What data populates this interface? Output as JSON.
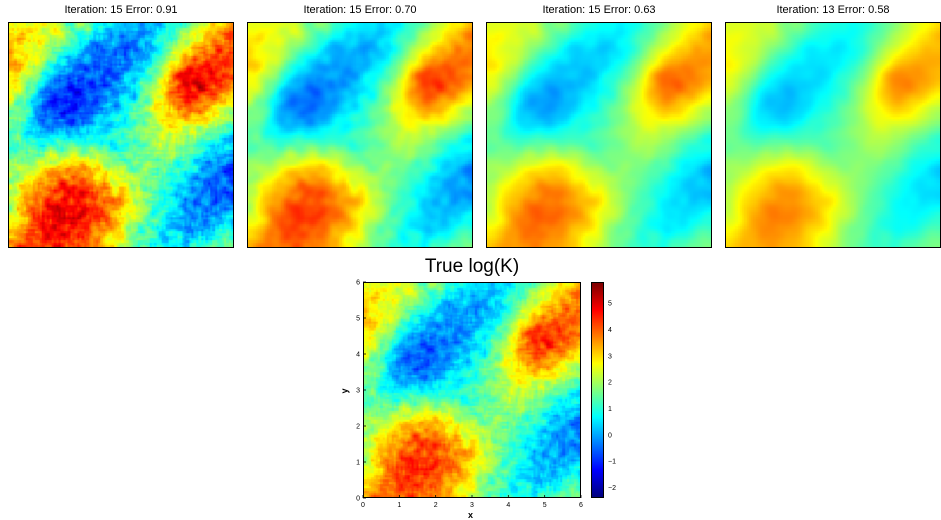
{
  "panels": [
    {
      "title": "Iteration: 15 Error: 0.91",
      "seed": 11,
      "smooth": 1,
      "amp": 1.25
    },
    {
      "title": "Iteration: 15 Error: 0.70",
      "seed": 11,
      "smooth": 3,
      "amp": 1.0
    },
    {
      "title": "Iteration: 15 Error: 0.63",
      "seed": 11,
      "smooth": 5,
      "amp": 0.85
    },
    {
      "title": "Iteration: 13 Error: 0.58",
      "seed": 11,
      "smooth": 7,
      "amp": 0.75
    }
  ],
  "chart_data": {
    "type": "heatmap",
    "title": "True log(K)",
    "xlabel": "x",
    "ylabel": "y",
    "xlim": [
      0,
      6
    ],
    "ylim": [
      0,
      6
    ],
    "x_ticks": [
      "0",
      "1",
      "2",
      "3",
      "4",
      "5",
      "6"
    ],
    "y_ticks": [
      "0",
      "1",
      "2",
      "3",
      "4",
      "5",
      "6"
    ],
    "colorbar": {
      "range": [
        -2.4,
        5.8
      ],
      "ticks": [
        "−2",
        "−1",
        "0",
        "1",
        "2",
        "3",
        "4",
        "5"
      ],
      "colormap": "jet"
    },
    "seed": 11
  }
}
